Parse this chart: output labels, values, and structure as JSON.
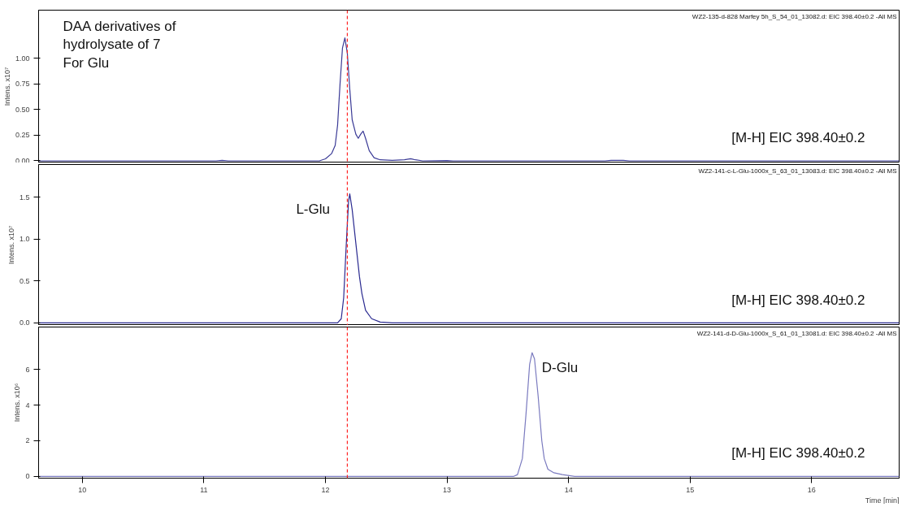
{
  "chart_data": [
    {
      "type": "line",
      "ylabel": "Intens. x10⁷",
      "xlim": [
        9.64,
        16.72
      ],
      "xticks": [
        10,
        11,
        12,
        13,
        14,
        15,
        16
      ],
      "ylim": [
        -0.02,
        1.47
      ],
      "yticks": [
        {
          "value": 0,
          "label": "0.00"
        },
        {
          "value": 0.25,
          "label": "0.25"
        },
        {
          "value": 0.5,
          "label": "0.50"
        },
        {
          "value": 0.75,
          "label": "0.75"
        },
        {
          "value": 1,
          "label": "1.00"
        }
      ],
      "tick_labels": "y",
      "x": [
        9.64,
        11.1,
        11.15,
        11.2,
        11.95,
        12.0,
        12.05,
        12.08,
        12.1,
        12.12,
        12.14,
        12.16,
        12.18,
        12.2,
        12.22,
        12.25,
        12.27,
        12.29,
        12.31,
        12.33,
        12.36,
        12.4,
        12.45,
        12.55,
        12.65,
        12.7,
        12.74,
        12.8,
        13.0,
        13.05,
        14.3,
        14.35,
        14.45,
        14.5,
        16.72
      ],
      "series": [
        {
          "color": "#3a3a96",
          "values": [
            0,
            0,
            0.005,
            0,
            0,
            0.02,
            0.07,
            0.15,
            0.35,
            0.75,
            1.1,
            1.2,
            1.05,
            0.7,
            0.4,
            0.26,
            0.22,
            0.26,
            0.29,
            0.22,
            0.1,
            0.03,
            0.01,
            0.005,
            0.01,
            0.02,
            0.01,
            0,
            0.003,
            0,
            0,
            0.005,
            0.005,
            0,
            0
          ]
        }
      ],
      "ref_lines": [
        {
          "axis": "x",
          "value": 12.18,
          "color": "#ff2020",
          "line_style": "dashed"
        }
      ],
      "annotations": [
        "WZ2-135-d-828 Marfey 5h_S_54_01_13082.d: EIC 398.40±0.2 -All MS",
        "[M-H] EIC 398.40±0.2",
        "DAA derivatives of\nhydrolysate of 7\nFor Glu"
      ]
    },
    {
      "type": "line",
      "ylabel": "Intens. x10⁷",
      "xlim": [
        9.64,
        16.72
      ],
      "xticks": [
        10,
        11,
        12,
        13,
        14,
        15,
        16
      ],
      "ylim": [
        -0.03,
        1.89
      ],
      "yticks": [
        {
          "value": 0,
          "label": "0.0"
        },
        {
          "value": 0.5,
          "label": "0.5"
        },
        {
          "value": 1,
          "label": "1.0"
        },
        {
          "value": 1.5,
          "label": "1.5"
        }
      ],
      "tick_labels": "y",
      "x": [
        9.64,
        12.1,
        12.13,
        12.15,
        12.17,
        12.19,
        12.2,
        12.22,
        12.25,
        12.28,
        12.3,
        12.33,
        12.38,
        12.45,
        12.55,
        16.72
      ],
      "series": [
        {
          "color": "#2a2a90",
          "values": [
            0,
            0,
            0.05,
            0.3,
            0.9,
            1.45,
            1.54,
            1.35,
            0.95,
            0.55,
            0.35,
            0.15,
            0.05,
            0.01,
            0,
            0
          ]
        }
      ],
      "ref_lines": [
        {
          "axis": "x",
          "value": 12.18,
          "color": "#ff2020",
          "line_style": "dashed"
        }
      ],
      "annotations": [
        "WZ2-141-c-L-Glu-1000x_S_63_01_13083.d: EIC 398.40±0.2 -All MS",
        "[M-H] EIC 398.40±0.2",
        {
          "text": "L-Glu",
          "x": 12.2,
          "y": 1.54
        }
      ]
    },
    {
      "type": "line",
      "ylabel": "Intens. x10⁶",
      "xlabel": "Time [min]",
      "xlim": [
        9.64,
        16.72
      ],
      "xticks": [
        10,
        11,
        12,
        13,
        14,
        15,
        16
      ],
      "ylim": [
        -0.1,
        8.39
      ],
      "yticks": [
        0,
        2,
        4,
        6
      ],
      "x": [
        9.64,
        13.55,
        13.58,
        13.62,
        13.65,
        13.68,
        13.7,
        13.72,
        13.75,
        13.78,
        13.8,
        13.83,
        13.88,
        13.95,
        14.05,
        16.72
      ],
      "series": [
        {
          "color": "#7a7abf",
          "values": [
            0,
            0,
            0.1,
            1.0,
            3.5,
            6.3,
            6.95,
            6.6,
            4.5,
            2.0,
            1.0,
            0.4,
            0.2,
            0.1,
            0,
            0
          ]
        }
      ],
      "ref_lines": [
        {
          "axis": "x",
          "value": 12.18,
          "color": "#ff2020",
          "line_style": "dashed"
        }
      ],
      "annotations": [
        "WZ2-141-d-D-Glu-1000x_S_61_01_13081.d: EIC 398.40±0.2 -All MS",
        "[M-H] EIC 398.40±0.2",
        {
          "text": "D-Glu",
          "x": 13.7,
          "y": 6.95
        }
      ]
    }
  ]
}
